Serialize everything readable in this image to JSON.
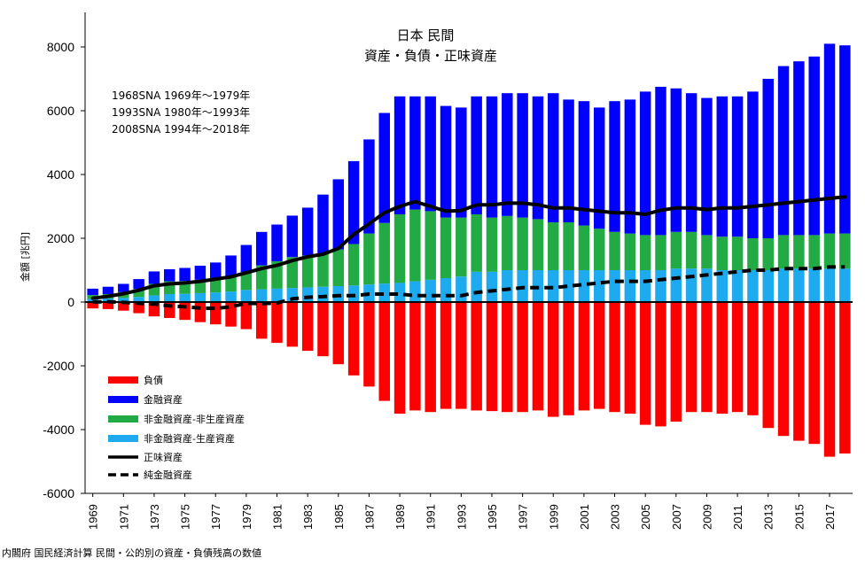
{
  "chart_data": {
    "type": "bar",
    "title": "日本 民間",
    "subtitle": "資産・負債・正味資産",
    "notes": [
      "1968SNA 1969年～1979年",
      "1993SNA 1980年～1993年",
      "2008SNA 1994年～2018年"
    ],
    "ylabel": "金額 [兆円]",
    "ylim": [
      -6000,
      9000
    ],
    "yticks": [
      "8000",
      "6000",
      "4000",
      "2000",
      "0",
      "-2000",
      "-4000",
      "-6000"
    ],
    "ytick_values": [
      8000,
      6000,
      4000,
      2000,
      0,
      -2000,
      -4000,
      -6000
    ],
    "x_tick_labels": [
      "1969",
      "1971",
      "1973",
      "1975",
      "1977",
      "1979",
      "1981",
      "1983",
      "1985",
      "1987",
      "1989",
      "1991",
      "1993",
      "1995",
      "1997",
      "1999",
      "2001",
      "2003",
      "2005",
      "2007",
      "2009",
      "2011",
      "2013",
      "2015",
      "2017"
    ],
    "years": [
      1969,
      1970,
      1971,
      1972,
      1973,
      1974,
      1975,
      1976,
      1977,
      1978,
      1979,
      1980,
      1981,
      1982,
      1983,
      1984,
      1985,
      1986,
      1987,
      1988,
      1989,
      1990,
      1991,
      1992,
      1993,
      1994,
      1995,
      1996,
      1997,
      1998,
      1999,
      2000,
      2001,
      2002,
      2003,
      2004,
      2005,
      2006,
      2007,
      2008,
      2009,
      2010,
      2011,
      2012,
      2013,
      2014,
      2015,
      2016,
      2017,
      2018
    ],
    "series": [
      {
        "name": "負債",
        "kind": "bar",
        "color": "#ff0000",
        "values": [
          -200,
          -220,
          -270,
          -350,
          -450,
          -500,
          -560,
          -630,
          -700,
          -770,
          -850,
          -1150,
          -1280,
          -1400,
          -1530,
          -1700,
          -1950,
          -2300,
          -2650,
          -3100,
          -3500,
          -3400,
          -3450,
          -3350,
          -3350,
          -3400,
          -3420,
          -3450,
          -3450,
          -3400,
          -3600,
          -3550,
          -3400,
          -3350,
          -3450,
          -3500,
          -3850,
          -3900,
          -3750,
          -3450,
          -3450,
          -3500,
          -3450,
          -3550,
          -3950,
          -4200,
          -4350,
          -4450,
          -4850,
          -4750
        ]
      },
      {
        "name": "金融資産",
        "kind": "bar",
        "color": "#0000ff",
        "values": [
          200,
          230,
          260,
          310,
          390,
          380,
          410,
          440,
          500,
          650,
          850,
          1050,
          1150,
          1300,
          1500,
          1850,
          2200,
          2600,
          2950,
          3450,
          3700,
          3550,
          3600,
          3500,
          3450,
          3700,
          3800,
          3850,
          3900,
          3850,
          4050,
          3850,
          3900,
          3800,
          4100,
          4200,
          4500,
          4650,
          4500,
          4350,
          4300,
          4400,
          4400,
          4600,
          5000,
          5300,
          5450,
          5600,
          5950,
          5900
        ]
      },
      {
        "name": "非金融資産-非生産資産",
        "kind": "bar",
        "color": "#22aa44",
        "values": [
          120,
          140,
          180,
          250,
          360,
          400,
          400,
          420,
          440,
          480,
          560,
          750,
          860,
          970,
          1000,
          1040,
          1150,
          1300,
          1600,
          1900,
          2150,
          2250,
          2150,
          1900,
          1850,
          1800,
          1700,
          1700,
          1650,
          1600,
          1500,
          1500,
          1400,
          1300,
          1200,
          1150,
          1100,
          1100,
          1150,
          1150,
          1050,
          1050,
          1050,
          1000,
          1000,
          1050,
          1050,
          1050,
          1100,
          1100
        ]
      },
      {
        "name": "非金融資産-生産資産",
        "kind": "bar",
        "color": "#1eaaee",
        "values": [
          100,
          110,
          130,
          160,
          210,
          250,
          260,
          280,
          300,
          330,
          380,
          400,
          420,
          440,
          460,
          480,
          500,
          520,
          550,
          580,
          600,
          650,
          700,
          750,
          800,
          950,
          950,
          1000,
          1000,
          1000,
          1000,
          1000,
          1000,
          1000,
          1000,
          1000,
          1000,
          1000,
          1050,
          1050,
          1050,
          1000,
          1000,
          1000,
          1000,
          1050,
          1050,
          1050,
          1050,
          1050
        ]
      },
      {
        "name": "正味資産",
        "kind": "line",
        "color": "#000000",
        "values": [
          120,
          180,
          260,
          370,
          510,
          570,
          600,
          650,
          720,
          790,
          920,
          1050,
          1150,
          1300,
          1420,
          1500,
          1680,
          2120,
          2450,
          2800,
          3000,
          3150,
          3000,
          2850,
          2870,
          3050,
          3050,
          3100,
          3100,
          3050,
          2950,
          2950,
          2900,
          2850,
          2800,
          2800,
          2750,
          2880,
          2950,
          2950,
          2900,
          2950,
          2950,
          3000,
          3050,
          3100,
          3150,
          3200,
          3250,
          3300
        ]
      },
      {
        "name": "純金融資産",
        "kind": "line",
        "color": "#000000",
        "dashed": true,
        "values": [
          0,
          10,
          -10,
          -40,
          -60,
          -120,
          -150,
          -190,
          -200,
          -150,
          -40,
          -50,
          -30,
          100,
          150,
          170,
          200,
          200,
          250,
          250,
          250,
          200,
          200,
          200,
          200,
          300,
          350,
          400,
          450,
          450,
          450,
          500,
          550,
          600,
          650,
          650,
          650,
          700,
          750,
          800,
          850,
          900,
          950,
          1000,
          1000,
          1050,
          1050,
          1050,
          1100,
          1100
        ]
      }
    ]
  },
  "legend": {
    "items": [
      {
        "label": "負債",
        "color": "#ff0000",
        "type": "bar"
      },
      {
        "label": "金融資産",
        "color": "#0000ff",
        "type": "bar"
      },
      {
        "label": "非金融資産-非生産資産",
        "color": "#22aa44",
        "type": "bar"
      },
      {
        "label": "非金融資産-生産資産",
        "color": "#1eaaee",
        "type": "bar"
      },
      {
        "label": "正味資産",
        "color": "#000000",
        "type": "line"
      },
      {
        "label": "純金融資産",
        "color": "#000000",
        "type": "dashed"
      }
    ]
  },
  "source": "内閣府 国民経済計算 民間・公的別の資産・負債残高の数値"
}
